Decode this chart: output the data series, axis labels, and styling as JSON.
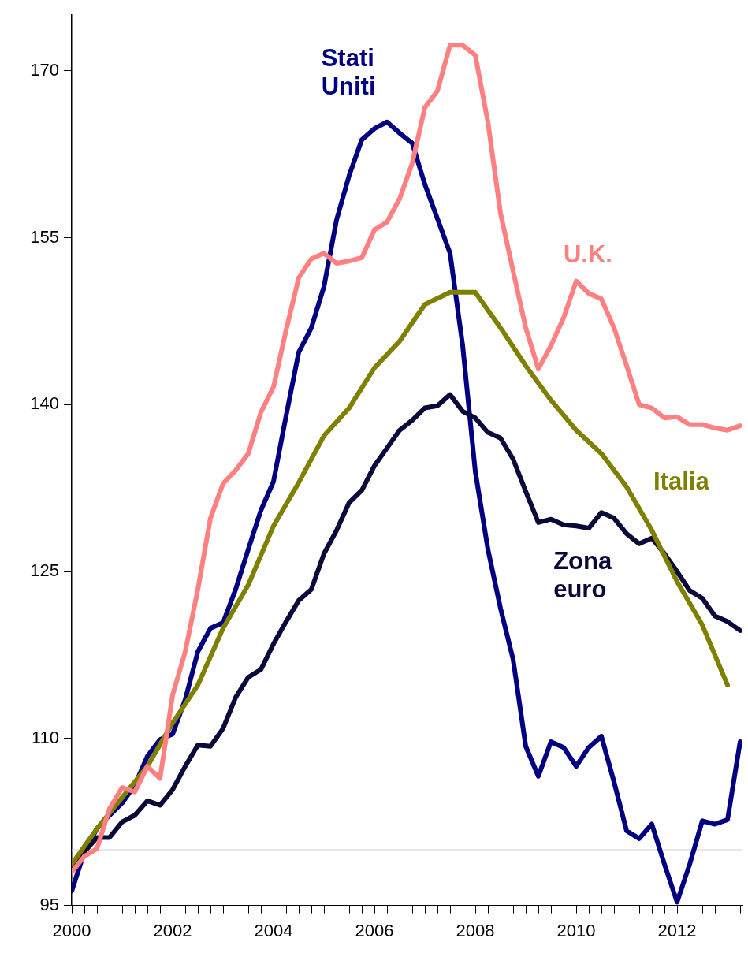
{
  "chart_data": {
    "type": "line",
    "xlim": [
      2000,
      2013.3
    ],
    "ylim": [
      95,
      175
    ],
    "xticks": [
      {
        "value": 2000,
        "label": "2000"
      },
      {
        "value": 2000.25,
        "label": null
      },
      {
        "value": 2000.5,
        "label": null
      },
      {
        "value": 2000.75,
        "label": null
      },
      {
        "value": 2001,
        "label": null
      },
      {
        "value": 2001.25,
        "label": null
      },
      {
        "value": 2001.5,
        "label": null
      },
      {
        "value": 2001.75,
        "label": null
      },
      {
        "value": 2002,
        "label": "2002"
      },
      {
        "value": 2002.25,
        "label": null
      },
      {
        "value": 2002.5,
        "label": null
      },
      {
        "value": 2002.75,
        "label": null
      },
      {
        "value": 2003,
        "label": null
      },
      {
        "value": 2003.25,
        "label": null
      },
      {
        "value": 2003.5,
        "label": null
      },
      {
        "value": 2003.75,
        "label": null
      },
      {
        "value": 2004,
        "label": "2004"
      },
      {
        "value": 2004.25,
        "label": null
      },
      {
        "value": 2004.5,
        "label": null
      },
      {
        "value": 2004.75,
        "label": null
      },
      {
        "value": 2005,
        "label": null
      },
      {
        "value": 2005.25,
        "label": null
      },
      {
        "value": 2005.5,
        "label": null
      },
      {
        "value": 2005.75,
        "label": null
      },
      {
        "value": 2006,
        "label": "2006"
      },
      {
        "value": 2006.25,
        "label": null
      },
      {
        "value": 2006.5,
        "label": null
      },
      {
        "value": 2006.75,
        "label": null
      },
      {
        "value": 2007,
        "label": null
      },
      {
        "value": 2007.25,
        "label": null
      },
      {
        "value": 2007.5,
        "label": null
      },
      {
        "value": 2007.75,
        "label": null
      },
      {
        "value": 2008,
        "label": "2008"
      },
      {
        "value": 2008.25,
        "label": null
      },
      {
        "value": 2008.5,
        "label": null
      },
      {
        "value": 2008.75,
        "label": null
      },
      {
        "value": 2009,
        "label": null
      },
      {
        "value": 2009.25,
        "label": null
      },
      {
        "value": 2009.5,
        "label": null
      },
      {
        "value": 2009.75,
        "label": null
      },
      {
        "value": 2010,
        "label": "2010"
      },
      {
        "value": 2010.25,
        "label": null
      },
      {
        "value": 2010.5,
        "label": null
      },
      {
        "value": 2010.75,
        "label": null
      },
      {
        "value": 2011,
        "label": null
      },
      {
        "value": 2011.25,
        "label": null
      },
      {
        "value": 2011.5,
        "label": null
      },
      {
        "value": 2011.75,
        "label": null
      },
      {
        "value": 2012,
        "label": "2012"
      },
      {
        "value": 2012.25,
        "label": null
      },
      {
        "value": 2012.5,
        "label": null
      },
      {
        "value": 2012.75,
        "label": null
      },
      {
        "value": 2013,
        "label": null
      },
      {
        "value": 2013.25,
        "label": null
      }
    ],
    "yticks": [
      95,
      110,
      125,
      140,
      155,
      170
    ],
    "grid": false,
    "legend": false,
    "marker": "none",
    "line_style": "solid",
    "ref_lines": [
      {
        "axis": "y",
        "value": 100,
        "color": "#d0d0d0"
      }
    ],
    "series": [
      {
        "name": "U.K.",
        "color": "#ff8080",
        "x": [
          2000,
          2000.25,
          2000.5,
          2000.75,
          2001,
          2001.25,
          2001.5,
          2001.75,
          2002,
          2002.25,
          2002.5,
          2002.75,
          2003,
          2003.25,
          2003.5,
          2003.75,
          2004,
          2004.25,
          2004.5,
          2004.75,
          2005,
          2005.25,
          2005.5,
          2005.75,
          2006,
          2006.25,
          2006.5,
          2006.75,
          2007,
          2007.25,
          2007.5,
          2007.75,
          2008,
          2008.25,
          2008.5,
          2008.75,
          2009,
          2009.25,
          2009.5,
          2009.75,
          2010,
          2010.25,
          2010.5,
          2010.75,
          2011,
          2011.25,
          2011.5,
          2011.75,
          2012,
          2012.25,
          2012.5,
          2012.75,
          2013,
          2013.25
        ],
        "values": [
          98.0,
          99.4,
          100.1,
          103.7,
          105.6,
          105.2,
          107.5,
          106.4,
          113.9,
          117.8,
          123.4,
          129.8,
          132.9,
          134.1,
          135.6,
          139.3,
          141.6,
          146.7,
          151.4,
          153.1,
          153.6,
          152.7,
          152.9,
          153.2,
          155.7,
          156.4,
          158.5,
          161.7,
          166.7,
          168.2,
          172.3,
          172.3,
          171.4,
          165.4,
          157.2,
          152.0,
          146.9,
          143.2,
          145.3,
          147.8,
          151.1,
          150.0,
          149.5,
          146.9,
          143.5,
          140.0,
          139.7,
          138.8,
          138.9,
          138.2,
          138.2,
          137.9,
          137.7,
          138.1
        ]
      },
      {
        "name": "Italia",
        "color": "#808000",
        "x": [
          2000,
          2000.5,
          2001,
          2001.5,
          2002,
          2002.5,
          2003,
          2003.5,
          2004,
          2004.5,
          2005,
          2005.5,
          2006,
          2006.5,
          2007,
          2007.5,
          2008,
          2008.5,
          2009,
          2009.5,
          2010,
          2010.5,
          2011,
          2011.5,
          2012,
          2012.5,
          2013
        ],
        "values": [
          98.7,
          101.9,
          104.7,
          107.5,
          111.4,
          114.8,
          119.9,
          123.8,
          129.1,
          133.0,
          137.2,
          139.7,
          143.3,
          145.7,
          149.0,
          150.1,
          150.1,
          146.9,
          143.5,
          140.4,
          137.7,
          135.6,
          132.6,
          128.7,
          124.1,
          120.2,
          114.8
        ]
      },
      {
        "name": "Zona euro",
        "color": "#0a0a3a",
        "x": [
          2000,
          2000.25,
          2000.5,
          2000.75,
          2001,
          2001.25,
          2001.5,
          2001.75,
          2002,
          2002.25,
          2002.5,
          2002.75,
          2003,
          2003.25,
          2003.5,
          2003.75,
          2004,
          2004.25,
          2004.5,
          2004.75,
          2005,
          2005.25,
          2005.5,
          2005.75,
          2006,
          2006.25,
          2006.5,
          2006.75,
          2007,
          2007.25,
          2007.5,
          2007.75,
          2008,
          2008.25,
          2008.5,
          2008.75,
          2009,
          2009.25,
          2009.5,
          2009.75,
          2010,
          2010.25,
          2010.5,
          2010.75,
          2011,
          2011.25,
          2011.5,
          2011.75,
          2012,
          2012.25,
          2012.5,
          2012.75,
          2013,
          2013.25
        ],
        "values": [
          98.6,
          99.8,
          101.1,
          101.1,
          102.5,
          103.1,
          104.4,
          104.0,
          105.4,
          107.5,
          109.4,
          109.3,
          110.9,
          113.7,
          115.5,
          116.2,
          118.5,
          120.5,
          122.4,
          123.4,
          126.6,
          128.7,
          131.2,
          132.3,
          134.5,
          136.1,
          137.7,
          138.6,
          139.7,
          139.9,
          140.9,
          139.4,
          138.8,
          137.5,
          137.0,
          135.1,
          132.2,
          129.4,
          129.7,
          129.2,
          129.1,
          128.9,
          130.3,
          129.8,
          128.4,
          127.5,
          128.0,
          126.6,
          125.0,
          123.3,
          122.6,
          121.0,
          120.5,
          119.7
        ]
      },
      {
        "name": "Stati Uniti",
        "color": "#000080",
        "x": [
          2000,
          2000.25,
          2000.5,
          2000.75,
          2001,
          2001.25,
          2001.5,
          2001.75,
          2002,
          2002.25,
          2002.5,
          2002.75,
          2003,
          2003.25,
          2003.5,
          2003.75,
          2004,
          2004.25,
          2004.5,
          2004.75,
          2005,
          2005.25,
          2005.5,
          2005.75,
          2006,
          2006.25,
          2006.5,
          2006.75,
          2007,
          2007.25,
          2007.5,
          2007.75,
          2008,
          2008.25,
          2008.5,
          2008.75,
          2009,
          2009.25,
          2009.5,
          2009.75,
          2010,
          2010.25,
          2010.5,
          2010.75,
          2011,
          2011.25,
          2011.5,
          2011.75,
          2012,
          2012.25,
          2012.5,
          2012.75,
          2013,
          2013.25
        ],
        "values": [
          96.3,
          99.8,
          101.9,
          103.1,
          104.2,
          105.8,
          108.4,
          109.9,
          110.4,
          113.5,
          117.8,
          119.9,
          120.4,
          123.4,
          127.0,
          130.5,
          133.1,
          139.0,
          144.7,
          146.9,
          150.6,
          156.6,
          160.6,
          163.8,
          164.8,
          165.4,
          164.4,
          163.5,
          159.8,
          156.7,
          153.6,
          145.3,
          134.0,
          127.0,
          121.7,
          117.1,
          109.3,
          106.6,
          109.7,
          109.2,
          107.5,
          109.2,
          110.2,
          106.1,
          101.7,
          101.0,
          102.3,
          98.7,
          95.3,
          98.7,
          102.6,
          102.3,
          102.7,
          109.7
        ]
      }
    ]
  }
}
